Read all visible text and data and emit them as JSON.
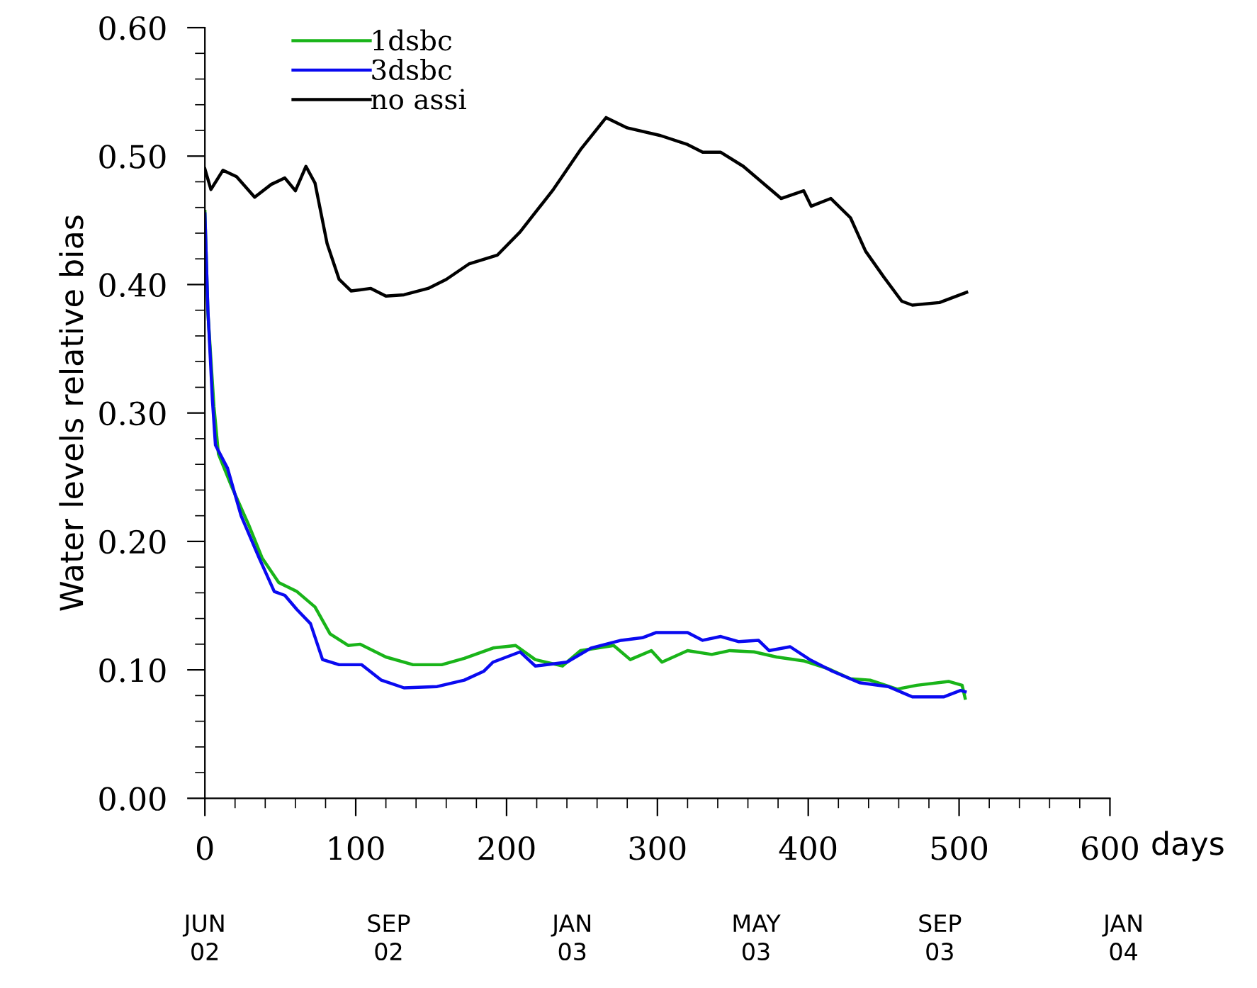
{
  "chart_data": {
    "type": "line",
    "xlabel": "days",
    "ylabel": "Water levels relative bias",
    "xlim": [
      0,
      600
    ],
    "xticks": [
      0,
      100,
      200,
      300,
      400,
      500,
      600
    ],
    "ylim": [
      0,
      0.6
    ],
    "yticks": [
      {
        "value": 0,
        "label": "0.00"
      },
      {
        "value": 0.1,
        "label": "0.10"
      },
      {
        "value": 0.2,
        "label": "0.20"
      },
      {
        "value": 0.3,
        "label": "0.30"
      },
      {
        "value": 0.4,
        "label": "0.40"
      },
      {
        "value": 0.5,
        "label": "0.50"
      },
      {
        "value": 0.6,
        "label": "0.60"
      }
    ],
    "annotations": [
      "JUN\n02",
      "SEP\n02",
      "JAN\n03",
      "MAY\n03",
      "SEP\n03",
      "JAN\n04"
    ],
    "legend": "top left",
    "grid": false,
    "series": [
      {
        "name": "1dsbc",
        "color": "#19b419",
        "x": [
          0,
          2,
          6,
          9,
          18,
          29,
          38,
          49,
          61,
          73,
          83,
          95,
          103,
          120,
          138,
          157,
          172,
          191,
          206,
          219,
          237,
          249,
          271,
          282,
          296,
          303,
          320,
          336,
          348,
          364,
          379,
          397,
          413,
          428,
          441,
          459,
          472,
          493,
          502,
          504
        ],
        "values": [
          0.457,
          0.378,
          0.305,
          0.268,
          0.242,
          0.213,
          0.187,
          0.168,
          0.161,
          0.149,
          0.128,
          0.119,
          0.12,
          0.11,
          0.104,
          0.104,
          0.109,
          0.117,
          0.119,
          0.108,
          0.103,
          0.115,
          0.119,
          0.108,
          0.115,
          0.106,
          0.115,
          0.112,
          0.115,
          0.114,
          0.11,
          0.107,
          0.101,
          0.093,
          0.092,
          0.085,
          0.088,
          0.091,
          0.088,
          0.078
        ]
      },
      {
        "name": "3dsbc",
        "color": "#0a0af0",
        "x": [
          0,
          2,
          5,
          7,
          15,
          24,
          36,
          46,
          53,
          61,
          70,
          78,
          89,
          104,
          117,
          132,
          154,
          172,
          185,
          191,
          209,
          219,
          240,
          256,
          276,
          290,
          299,
          320,
          330,
          342,
          354,
          367,
          374,
          388,
          401,
          416,
          434,
          453,
          469,
          490,
          501,
          504
        ],
        "values": [
          0.455,
          0.38,
          0.31,
          0.275,
          0.257,
          0.22,
          0.187,
          0.161,
          0.158,
          0.147,
          0.136,
          0.108,
          0.104,
          0.104,
          0.092,
          0.086,
          0.087,
          0.092,
          0.099,
          0.106,
          0.114,
          0.103,
          0.106,
          0.117,
          0.123,
          0.125,
          0.129,
          0.129,
          0.123,
          0.126,
          0.122,
          0.123,
          0.115,
          0.118,
          0.108,
          0.099,
          0.09,
          0.087,
          0.079,
          0.079,
          0.084,
          0.083
        ]
      },
      {
        "name": "no assi",
        "color": "#000000",
        "x": [
          0,
          4,
          12,
          21,
          33,
          44,
          53,
          60,
          67,
          73,
          81,
          89,
          97,
          110,
          120,
          132,
          148,
          160,
          175,
          194,
          209,
          231,
          249,
          266,
          280,
          302,
          320,
          330,
          342,
          357,
          373,
          382,
          397,
          402,
          415,
          428,
          438,
          450,
          462,
          469,
          487,
          505
        ],
        "values": [
          0.49,
          0.474,
          0.489,
          0.484,
          0.468,
          0.478,
          0.483,
          0.473,
          0.492,
          0.479,
          0.432,
          0.404,
          0.395,
          0.397,
          0.391,
          0.392,
          0.397,
          0.404,
          0.416,
          0.423,
          0.441,
          0.474,
          0.505,
          0.53,
          0.522,
          0.516,
          0.509,
          0.503,
          0.503,
          0.492,
          0.476,
          0.467,
          0.473,
          0.461,
          0.467,
          0.452,
          0.426,
          0.406,
          0.387,
          0.384,
          0.386,
          0.394
        ]
      }
    ]
  }
}
